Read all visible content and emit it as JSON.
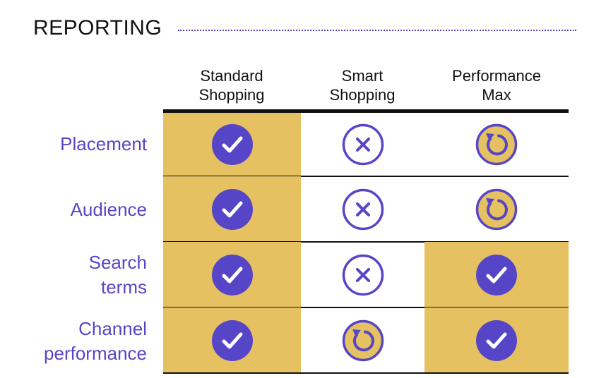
{
  "title": "REPORTING",
  "columns": [
    "Standard\nShopping",
    "Smart\nShopping",
    "Performance\nMax"
  ],
  "rows": [
    {
      "label": "Placement",
      "cells": [
        {
          "status": "check",
          "highlight": true
        },
        {
          "status": "cross",
          "highlight": false
        },
        {
          "status": "refresh",
          "highlight": false
        }
      ]
    },
    {
      "label": "Audience",
      "cells": [
        {
          "status": "check",
          "highlight": true
        },
        {
          "status": "cross",
          "highlight": false
        },
        {
          "status": "refresh",
          "highlight": false
        }
      ]
    },
    {
      "label": "Search\nterms",
      "cells": [
        {
          "status": "check",
          "highlight": true
        },
        {
          "status": "cross",
          "highlight": false
        },
        {
          "status": "check",
          "highlight": true
        }
      ]
    },
    {
      "label": "Channel\nperformance",
      "cells": [
        {
          "status": "check",
          "highlight": true
        },
        {
          "status": "refresh",
          "highlight": false
        },
        {
          "status": "check",
          "highlight": true
        }
      ]
    }
  ],
  "colors": {
    "accent": "#5646c7",
    "highlight": "#e6c162",
    "text": "#111111",
    "rule": "#111111"
  },
  "icon_names": {
    "check": "check-circle-icon",
    "cross": "cross-circle-icon",
    "refresh": "refresh-circle-icon"
  }
}
